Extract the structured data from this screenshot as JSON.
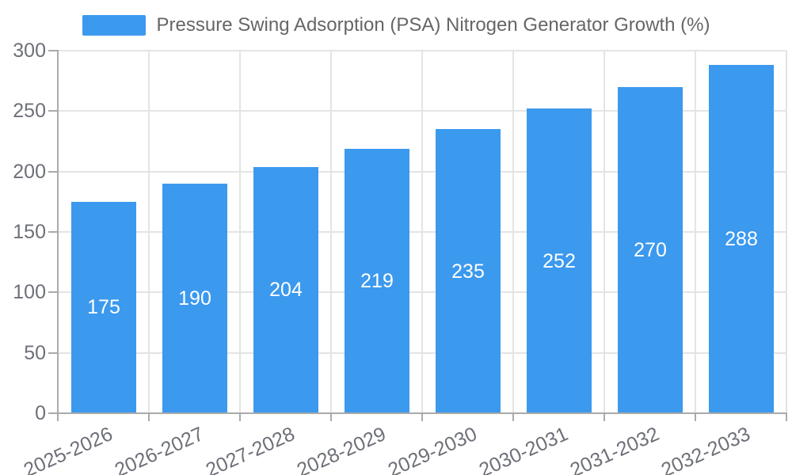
{
  "legend": {
    "label": "Pressure Swing Adsorption (PSA) Nitrogen Generator Growth (%)"
  },
  "colors": {
    "bar": "#3b99ee",
    "grid": "#e4e4e4",
    "axis_line": "#aaaaaa",
    "axis_text": "#6e7079",
    "legend_text": "#666666",
    "value_text": "#ffffff",
    "background": "#ffffff"
  },
  "chart_data": {
    "type": "bar",
    "title": "Pressure Swing Adsorption (PSA) Nitrogen Generator Growth (%)",
    "categories": [
      "2025-2026",
      "2026-2027",
      "2027-2028",
      "2028-2029",
      "2029-2030",
      "2030-2031",
      "2031-2032",
      "2032-2033"
    ],
    "values": [
      175,
      190,
      204,
      219,
      235,
      252,
      270,
      288
    ],
    "xlabel": "",
    "ylabel": "",
    "ylim": [
      0,
      300
    ],
    "yticks": [
      0,
      50,
      100,
      150,
      200,
      250,
      300
    ],
    "grid": true,
    "legend_position": "top-center",
    "value_label_position": "inside-center",
    "x_tick_label_rotation_deg": -24,
    "bar_color": "#3b99ee"
  }
}
